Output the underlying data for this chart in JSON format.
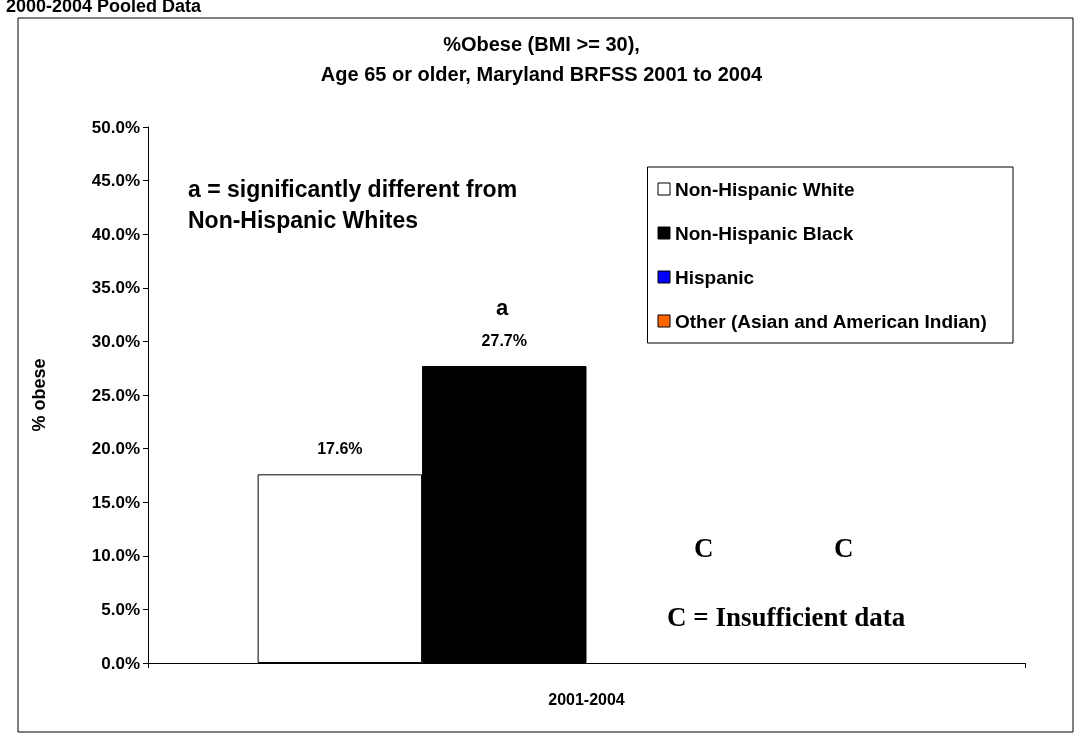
{
  "chart_data": {
    "type": "bar",
    "title": "%Obese (BMI >= 30),\nAge 65 or older, Maryland BRFSS 2001 to 2004",
    "ylabel": "% obese",
    "categories": [
      "2001-2004"
    ],
    "series": [
      {
        "name": "Non-Hispanic White",
        "color": "#ffffff",
        "values": [
          17.6
        ],
        "value_labels": [
          "17.6%"
        ]
      },
      {
        "name": "Non-Hispanic Black",
        "color": "#000000",
        "values": [
          27.7
        ],
        "value_labels": [
          "27.7%"
        ]
      },
      {
        "name": "Hispanic",
        "color": "#0000ff",
        "values": [
          null
        ]
      },
      {
        "name": "Other (Asian and American Indian)",
        "color": "#ff6600",
        "values": [
          null
        ]
      }
    ],
    "ylim": [
      0,
      50
    ],
    "yticks": [
      {
        "value": 0,
        "label": "0.0%"
      },
      {
        "value": 5,
        "label": "5.0%"
      },
      {
        "value": 10,
        "label": "10.0%"
      },
      {
        "value": 15,
        "label": "15.0%"
      },
      {
        "value": 20,
        "label": "20.0%"
      },
      {
        "value": 25,
        "label": "25.0%"
      },
      {
        "value": 30,
        "label": "30.0%"
      },
      {
        "value": 35,
        "label": "35.0%"
      },
      {
        "value": 40,
        "label": "40.0%"
      },
      {
        "value": 45,
        "label": "45.0%"
      },
      {
        "value": 50,
        "label": "50.0%"
      }
    ],
    "annotations": [
      "2000-2004 Pooled Data",
      "a = significantly different from\nNon-Hispanic Whites",
      "a",
      "C",
      "C",
      "C = Insufficient data"
    ],
    "grid": false,
    "legend": "top right"
  }
}
